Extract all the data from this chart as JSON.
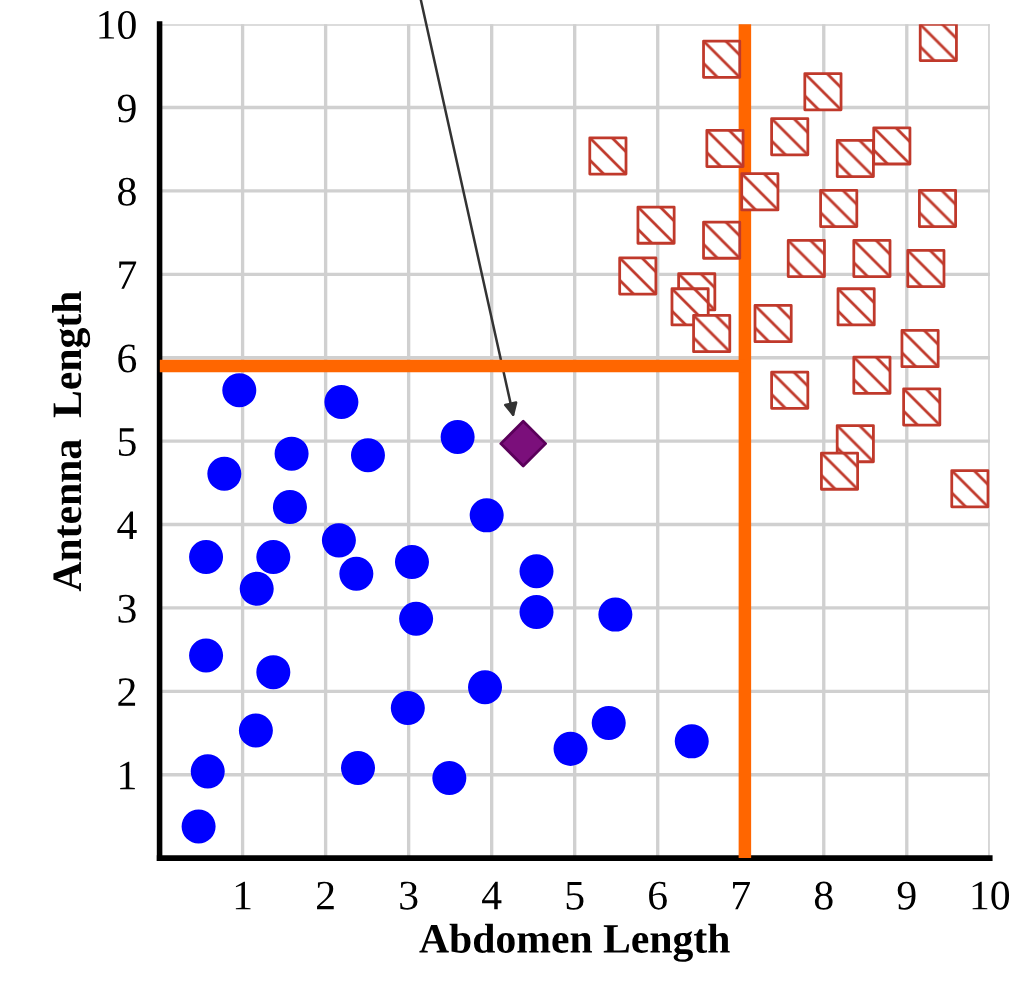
{
  "chart_data": {
    "type": "scatter",
    "xlabel": "Abdomen Length",
    "ylabel": "Antenna  Length",
    "xlim": [
      0,
      10
    ],
    "ylim": [
      0,
      10
    ],
    "xticks": [
      1,
      2,
      3,
      4,
      5,
      6,
      7,
      8,
      9,
      10
    ],
    "yticks": [
      1,
      2,
      3,
      4,
      5,
      6,
      7,
      8,
      9,
      10
    ],
    "grid": true,
    "legend": false,
    "ref_lines": [
      {
        "axis": "x",
        "value": 7.05,
        "color": "#ff6600"
      },
      {
        "axis": "y",
        "value": 5.9,
        "color": "#ff6600"
      }
    ],
    "series": [
      {
        "color": "#0000ff",
        "marker": "circle",
        "x": [
          0.96,
          2.19,
          3.59,
          1.59,
          2.51,
          0.78,
          1.57,
          3.94,
          2.16,
          0.56,
          1.37,
          3.04,
          2.37,
          4.54,
          1.17,
          3.09,
          4.54,
          5.49,
          0.56,
          1.37,
          3.92,
          2.99,
          1.16,
          5.41,
          4.95,
          6.41,
          0.58,
          2.39,
          3.49,
          0.47
        ],
        "values": [
          5.61,
          5.47,
          5.05,
          4.85,
          4.83,
          4.61,
          4.21,
          4.11,
          3.81,
          3.61,
          3.61,
          3.55,
          3.41,
          3.44,
          3.23,
          2.87,
          2.95,
          2.92,
          2.43,
          2.23,
          2.05,
          1.8,
          1.53,
          1.62,
          1.31,
          1.4,
          1.04,
          1.08,
          0.96,
          0.38
        ]
      },
      {
        "color": "#c0392b",
        "marker": "square",
        "x": [
          6.77,
          9.38,
          7.99,
          5.4,
          6.81,
          7.59,
          8.38,
          8.82,
          7.23,
          8.18,
          9.37,
          5.98,
          6.77,
          7.79,
          8.58,
          9.23,
          5.76,
          6.47,
          6.39,
          8.39,
          6.65,
          7.39,
          9.16,
          8.58,
          7.59,
          9.18,
          8.38,
          8.19,
          9.76
        ],
        "values": [
          9.58,
          9.78,
          9.19,
          8.42,
          8.51,
          8.65,
          8.39,
          8.54,
          7.99,
          7.79,
          7.79,
          7.59,
          7.41,
          7.19,
          7.19,
          7.07,
          6.98,
          6.79,
          6.61,
          6.61,
          6.29,
          6.41,
          6.11,
          5.79,
          5.61,
          5.41,
          4.97,
          4.64,
          4.43
        ]
      },
      {
        "color": "#7b0f7b",
        "marker": "diamond",
        "x": [
          4.38
        ],
        "values": [
          4.97
        ]
      }
    ]
  }
}
